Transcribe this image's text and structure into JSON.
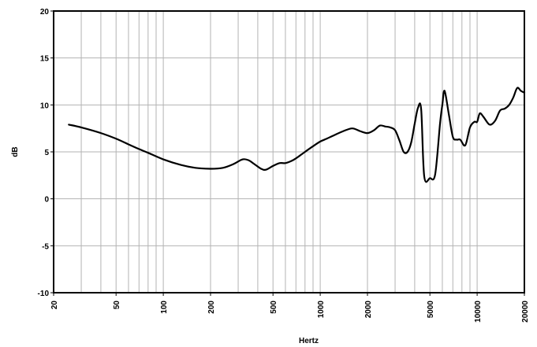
{
  "chart_data": {
    "type": "line",
    "title": "",
    "xlabel": "Hertz",
    "ylabel": "dB",
    "x_scale": "log",
    "xlim": [
      20,
      20000
    ],
    "ylim": [
      -10,
      20
    ],
    "grid": true,
    "x_ticks": [
      20,
      50,
      100,
      200,
      500,
      1000,
      2000,
      5000,
      10000,
      20000
    ],
    "x_tick_labels": [
      "20",
      "50",
      "100",
      "200",
      "500",
      "1000",
      "2000",
      "5000",
      "10000",
      "20000"
    ],
    "y_ticks": [
      -10,
      -5,
      0,
      5,
      10,
      15,
      20
    ],
    "y_tick_labels": [
      "-10",
      "-5",
      "0",
      "5",
      "10",
      "15",
      "20"
    ],
    "line_color": "#000000",
    "series": [
      {
        "x": [
          25,
          30,
          40,
          50,
          60,
          70,
          80,
          100,
          130,
          160,
          200,
          240,
          280,
          320,
          350,
          380,
          420,
          450,
          500,
          550,
          600,
          650,
          700,
          800,
          900,
          1000,
          1100,
          1200,
          1400,
          1600,
          1800,
          2000,
          2200,
          2400,
          2600,
          2800,
          3000,
          3200,
          3400,
          3600,
          3800,
          4000,
          4200,
          4400,
          4600,
          5000,
          5400,
          5800,
          6000,
          6200,
          6600,
          7000,
          7400,
          7800,
          8400,
          9000,
          9600,
          10000,
          10400,
          11000,
          12000,
          13000,
          14000,
          15000,
          16000,
          17000,
          18000,
          19000,
          20000
        ],
        "y": [
          7.9,
          7.6,
          7.0,
          6.4,
          5.8,
          5.3,
          4.9,
          4.2,
          3.6,
          3.3,
          3.2,
          3.3,
          3.7,
          4.2,
          4.1,
          3.7,
          3.2,
          3.1,
          3.5,
          3.8,
          3.8,
          4.0,
          4.3,
          5.0,
          5.6,
          6.1,
          6.4,
          6.7,
          7.2,
          7.5,
          7.2,
          7.0,
          7.3,
          7.8,
          7.7,
          7.6,
          7.3,
          6.2,
          5.0,
          5.0,
          6.0,
          8.0,
          9.7,
          9.5,
          2.4,
          2.2,
          2.6,
          8.0,
          10.0,
          11.5,
          9.0,
          6.6,
          6.3,
          6.3,
          5.7,
          7.6,
          8.2,
          8.2,
          9.1,
          8.7,
          7.9,
          8.3,
          9.4,
          9.6,
          10.0,
          10.8,
          11.8,
          11.5,
          11.3
        ]
      }
    ]
  }
}
